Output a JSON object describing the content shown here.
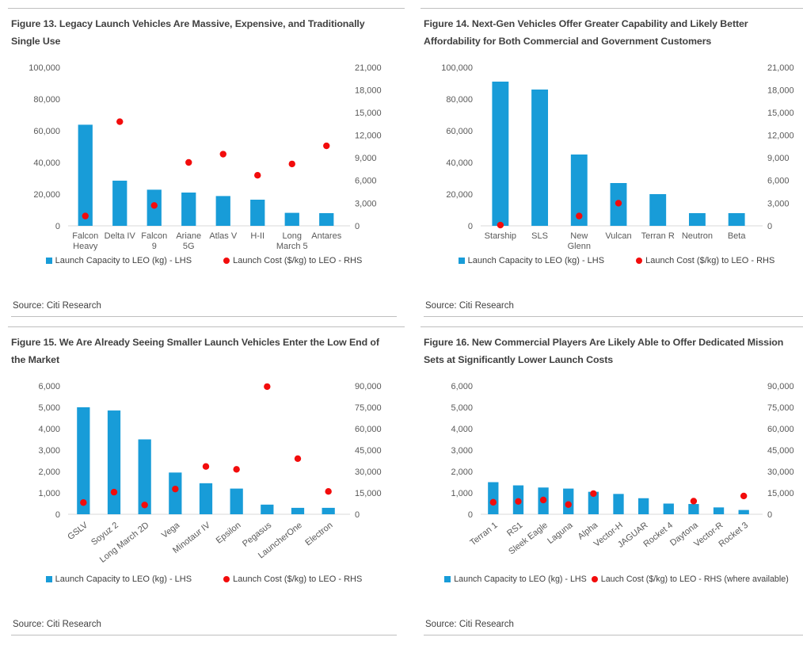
{
  "colors": {
    "bar": "#189cd8",
    "dot": "#f20c0c",
    "title_text": "#404040",
    "axis_text": "#595959",
    "rule": "#bfbfbf",
    "baseline": "#d9d9d9"
  },
  "chart_data": [
    {
      "id": "figure-13",
      "type": "bar",
      "title": "Figure 13. Legacy Launch Vehicles Are Massive, Expensive, and Traditionally Single Use",
      "categories": [
        "Falcon Heavy",
        "Delta IV",
        "Falcon 9",
        "Ariane 5G",
        "Atlas V",
        "H-II",
        "Long March 5",
        "Antares"
      ],
      "category_lines": [
        [
          "Falcon",
          "Heavy"
        ],
        [
          "Delta IV"
        ],
        [
          "Falcon",
          "9"
        ],
        [
          "Ariane",
          "5G"
        ],
        [
          "Atlas V"
        ],
        [
          "H-II"
        ],
        [
          "Long",
          "March 5"
        ],
        [
          "Antares"
        ]
      ],
      "category_rotation": 0,
      "series": [
        {
          "name": "Launch Capacity to LEO (kg) - LHS",
          "kind": "bar",
          "axis": "left",
          "values": [
            63800,
            28500,
            22800,
            21000,
            18800,
            16500,
            8200,
            8000
          ]
        },
        {
          "name": "Launch Cost ($/kg) to LEO - RHS",
          "kind": "scatter",
          "axis": "right",
          "values": [
            1300,
            13800,
            2700,
            8400,
            9500,
            6700,
            8200,
            10600
          ]
        }
      ],
      "left_axis": {
        "min": 0,
        "max": 100000,
        "step": 20000
      },
      "right_axis": {
        "min": 0,
        "max": 21000,
        "step": 3000
      },
      "grid": false,
      "legend_position": "bottom",
      "source": "Source: Citi Research"
    },
    {
      "id": "figure-14",
      "type": "bar",
      "title": "Figure 14. Next-Gen Vehicles Offer Greater Capability and Likely Better Affordability for Both Commercial and Government Customers",
      "categories": [
        "Starship",
        "SLS",
        "New Glenn",
        "Vulcan",
        "Terran R",
        "Neutron",
        "Beta"
      ],
      "category_lines": [
        [
          "Starship"
        ],
        [
          "SLS"
        ],
        [
          "New",
          "Glenn"
        ],
        [
          "Vulcan"
        ],
        [
          "Terran R"
        ],
        [
          "Neutron"
        ],
        [
          "Beta"
        ]
      ],
      "category_rotation": 0,
      "series": [
        {
          "name": "Launch Capacity to LEO (kg) - LHS",
          "kind": "bar",
          "axis": "left",
          "values": [
            91000,
            86000,
            45000,
            27000,
            20000,
            8000,
            8000
          ]
        },
        {
          "name": "Launch Cost ($/kg) to LEO - RHS",
          "kind": "scatter",
          "axis": "right",
          "values": [
            100,
            null,
            1300,
            3000,
            null,
            null,
            null
          ]
        }
      ],
      "left_axis": {
        "min": 0,
        "max": 100000,
        "step": 20000
      },
      "right_axis": {
        "min": 0,
        "max": 21000,
        "step": 3000
      },
      "grid": false,
      "legend_position": "bottom",
      "source": "Source: Citi Research"
    },
    {
      "id": "figure-15",
      "type": "bar",
      "title": "Figure 15. We Are Already Seeing Smaller Launch Vehicles Enter the Low End of the Market",
      "categories": [
        "GSLV",
        "Soyuz 2",
        "Long March 2D",
        "Vega",
        "Minotaur IV",
        "Epsilon",
        "Pegasus",
        "LauncherOne",
        "Electron"
      ],
      "category_lines": null,
      "category_rotation": -38,
      "series": [
        {
          "name": "Launch Capacity to LEO (kg) - LHS",
          "kind": "bar",
          "axis": "left",
          "values": [
            5000,
            4850,
            3500,
            1950,
            1450,
            1200,
            450,
            300,
            300
          ]
        },
        {
          "name": "Launch Cost ($/kg) to LEO - RHS",
          "kind": "scatter",
          "axis": "right",
          "values": [
            8200,
            15500,
            6500,
            17700,
            33500,
            31500,
            89500,
            39000,
            16000
          ]
        }
      ],
      "left_axis": {
        "min": 0,
        "max": 6000,
        "step": 1000
      },
      "right_axis": {
        "min": 0,
        "max": 90000,
        "step": 15000
      },
      "grid": false,
      "legend_position": "bottom",
      "source": "Source: Citi Research"
    },
    {
      "id": "figure-16",
      "type": "bar",
      "title": "Figure 16. New Commercial Players Are Likely Able to Offer Dedicated Mission Sets at Significantly Lower Launch Costs",
      "categories": [
        "Terran 1",
        "RS1",
        "Sleek Eagle",
        "Laguna",
        "Alpha",
        "Vector-H",
        "JAGUAR",
        "Rocket 4",
        "Daytona",
        "Vector-R",
        "Rocket 3"
      ],
      "category_lines": null,
      "category_rotation": -38,
      "series": [
        {
          "name": "Launch Capacity to LEO (kg) - LHS",
          "kind": "bar",
          "axis": "left",
          "values": [
            1500,
            1350,
            1250,
            1200,
            1050,
            950,
            750,
            500,
            480,
            320,
            200
          ]
        },
        {
          "name": "Lauch Cost ($/kg) to LEO - RHS (where available)",
          "kind": "scatter",
          "axis": "right",
          "values": [
            8400,
            9000,
            10000,
            6800,
            14500,
            null,
            null,
            null,
            9200,
            null,
            12800
          ]
        }
      ],
      "left_axis": {
        "min": 0,
        "max": 6000,
        "step": 1000
      },
      "right_axis": {
        "min": 0,
        "max": 90000,
        "step": 15000
      },
      "grid": false,
      "legend_position": "bottom",
      "source": "Source: Citi Research"
    }
  ]
}
